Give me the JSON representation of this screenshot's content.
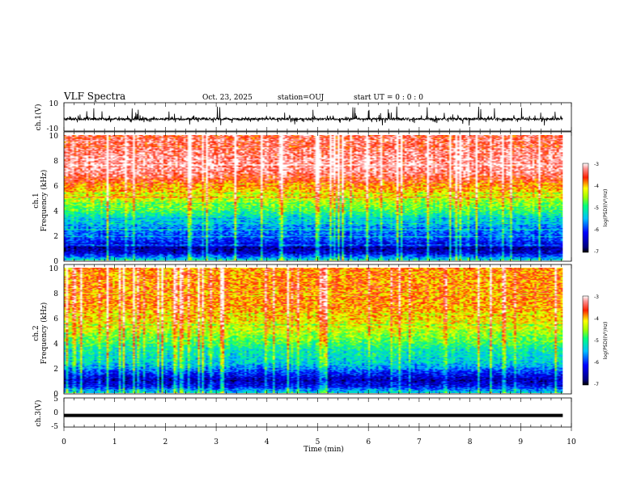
{
  "header": {
    "title": "VLF Spectra",
    "date": "Oct. 23, 2025",
    "station": "station=OUJ",
    "start": "start UT =  0 : 0 : 0"
  },
  "chart_data": [
    {
      "type": "line",
      "id": "ch1-waveform",
      "ylabel": "ch.1(V)",
      "ylim": [
        -10,
        10
      ],
      "y_ticks": [
        "10",
        "-10"
      ],
      "x_range_min": [
        0,
        9.83
      ],
      "baseline_V": -1.5,
      "spike_amplitude_V": 10
    },
    {
      "type": "heatmap",
      "id": "ch1-spectrogram",
      "ylabel": "ch.1",
      "ylabel2": "Frequency (kHz)",
      "ylim": [
        0,
        10
      ],
      "y_ticks": [
        "0",
        "2",
        "4",
        "6",
        "8",
        "10"
      ],
      "x_range_min": [
        0,
        9.83
      ],
      "value_label": "log(PSD)(V²/Hz)",
      "value_range": [
        -7,
        -3
      ],
      "value_ticks": [
        "-3",
        "-4",
        "-5",
        "-6",
        "-7"
      ],
      "profile_freq_kHz": [
        0.0,
        0.5,
        1.0,
        1.5,
        2.0,
        2.5,
        3.0,
        3.5,
        4.0,
        5.0,
        6.0,
        7.0,
        8.0,
        10.0
      ],
      "profile_logpsd": [
        -5.2,
        -6.3,
        -6.6,
        -6.0,
        -5.8,
        -5.7,
        -5.4,
        -5.2,
        -4.8,
        -4.3,
        -3.8,
        -3.3,
        -3.2,
        -3.5
      ]
    },
    {
      "type": "heatmap",
      "id": "ch2-spectrogram",
      "ylabel": "ch.2",
      "ylabel2": "Frequency (kHz)",
      "ylim": [
        0,
        10
      ],
      "y_ticks": [
        "0",
        "2",
        "4",
        "6",
        "8",
        "10"
      ],
      "x_range_min": [
        0,
        9.83
      ],
      "value_label": "log(PSD)(V²/Hz)",
      "value_range": [
        -7,
        -3
      ],
      "value_ticks": [
        "-3",
        "-4",
        "-5",
        "-6",
        "-7"
      ],
      "profile_freq_kHz": [
        0.0,
        0.5,
        1.0,
        1.5,
        2.0,
        2.5,
        3.0,
        3.5,
        4.0,
        5.0,
        6.0,
        7.0,
        8.0,
        10.0
      ],
      "profile_logpsd": [
        -5.3,
        -6.2,
        -6.5,
        -6.1,
        -5.6,
        -5.3,
        -5.2,
        -5.1,
        -4.8,
        -4.4,
        -4.1,
        -3.9,
        -3.8,
        -3.9
      ]
    },
    {
      "type": "line",
      "id": "ch3-waveform",
      "ylabel": "ch.3(V)",
      "ylim": [
        -5,
        5
      ],
      "y_ticks": [
        "5",
        "0",
        "-5"
      ],
      "x_range_min": [
        0,
        9.83
      ],
      "level_V": -1.0
    }
  ],
  "x_axis": {
    "label": "Time (min)",
    "range": [
      0,
      10
    ],
    "ticks": [
      "0",
      "1",
      "2",
      "3",
      "4",
      "5",
      "6",
      "7",
      "8",
      "9",
      "10"
    ]
  }
}
